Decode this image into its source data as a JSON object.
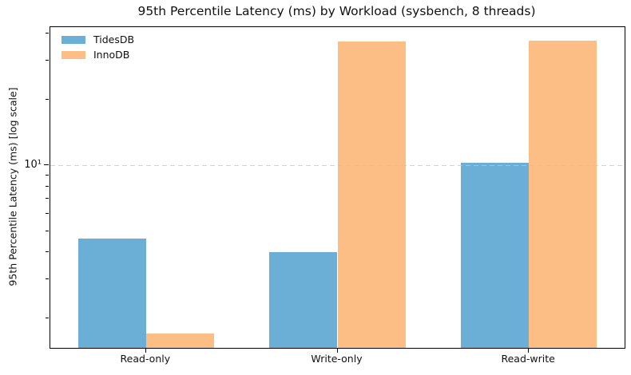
{
  "chart_data": {
    "type": "bar",
    "title": "95th Percentile Latency (ms) by Workload (sysbench, 8 threads)",
    "xlabel": "",
    "ylabel": "95th Percentile Latency (ms) [log scale]",
    "yscale": "log",
    "ylim": [
      1.46,
      42.8
    ],
    "categories": [
      "Read-only",
      "Write-only",
      "Read-write"
    ],
    "series": [
      {
        "name": "TidesDB",
        "color": "#6baed6",
        "values": [
          4.6,
          4.0,
          10.3
        ]
      },
      {
        "name": "InnoDB",
        "color": "#fdbe85",
        "values": [
          1.7,
          36.8,
          37.2
        ]
      }
    ],
    "yticks_major": [
      {
        "value": 10,
        "label": "10¹"
      }
    ],
    "grid": {
      "axis": "y",
      "style": "dashed",
      "at_values": [
        10
      ],
      "color": "#c4c4c4",
      "above_bars": true
    },
    "legend_position": "upper-left",
    "legend_frame": false,
    "bar_width_fraction": 0.355,
    "background_color": "#ffffff",
    "spine_color": "#000000"
  }
}
